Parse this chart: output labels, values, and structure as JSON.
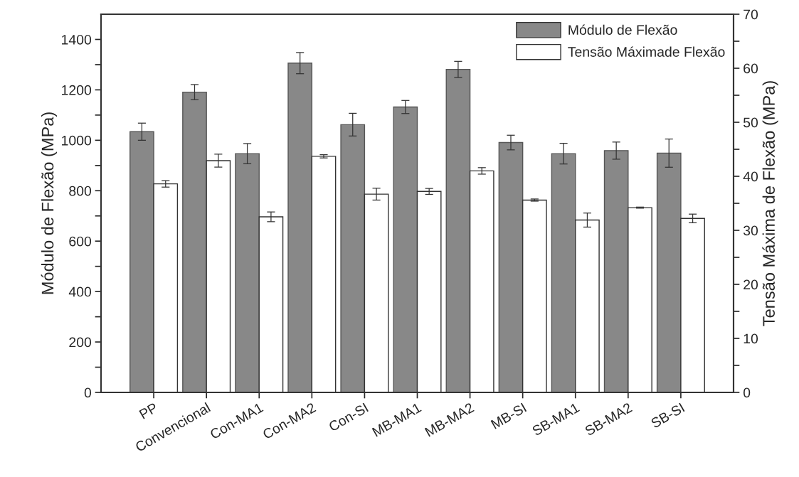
{
  "chart_data": {
    "type": "bar",
    "ylabel": "Módulo de Flexão (MPa)",
    "y2label": "Tensão Máxima de Flexão (MPa)",
    "categories": [
      "PP",
      "Convencional",
      "Con-MA1",
      "Con-MA2",
      "Con-SI",
      "MB-MA1",
      "MB-MA2",
      "MB-SI",
      "SB-MA1",
      "SB-MA2",
      "SB-SI"
    ],
    "series": [
      {
        "name": "Módulo de Flexão",
        "color": "#888888",
        "values": [
          1034,
          1191,
          947,
          1306,
          1062,
          1132,
          1281,
          991,
          947,
          959,
          949
        ],
        "errors": [
          34,
          30,
          40,
          42,
          45,
          26,
          32,
          29,
          41,
          34,
          56
        ]
      },
      {
        "name": "Tensão Máximade Flexão",
        "color": "#ffffff",
        "axis": "y2",
        "values": [
          38.6,
          42.9,
          32.5,
          43.7,
          36.7,
          37.2,
          41.0,
          35.6,
          31.9,
          34.2,
          32.2
        ],
        "errors": [
          0.6,
          1.2,
          0.9,
          0.3,
          1.1,
          0.55,
          0.6,
          0.2,
          1.3,
          0.1,
          0.8
        ]
      }
    ],
    "ylim": [
      0,
      1500
    ],
    "yticks": [
      0,
      {
        "value": 100,
        "label": null
      },
      200,
      {
        "value": 300,
        "label": null
      },
      400,
      {
        "value": 500,
        "label": null
      },
      600,
      {
        "value": 700,
        "label": null
      },
      800,
      {
        "value": 900,
        "label": null
      },
      1000,
      {
        "value": 1100,
        "label": null
      },
      1200,
      {
        "value": 1300,
        "label": null
      },
      1400
    ],
    "y2lim": [
      0,
      70
    ],
    "y2ticks": [
      0,
      {
        "value": 5,
        "label": null
      },
      10,
      {
        "value": 15,
        "label": null
      },
      20,
      {
        "value": 25,
        "label": null
      },
      30,
      {
        "value": 35,
        "label": null
      },
      40,
      {
        "value": 45,
        "label": null
      },
      50,
      {
        "value": 55,
        "label": null
      },
      60,
      {
        "value": 65,
        "label": null
      },
      70
    ],
    "grid": false,
    "legend": "top right"
  }
}
